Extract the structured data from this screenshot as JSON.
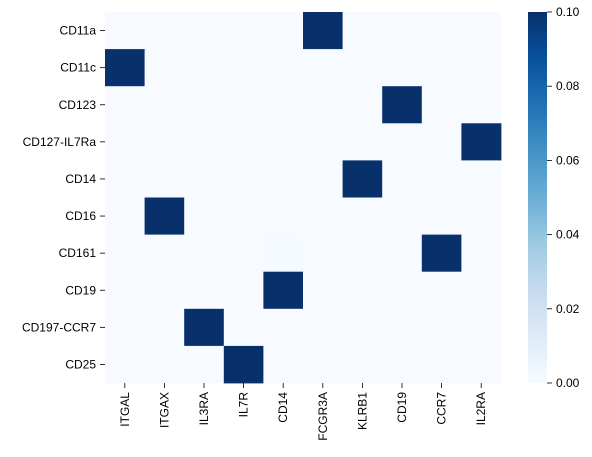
{
  "chart_data": {
    "type": "heatmap",
    "title": "",
    "xlabel": "",
    "ylabel": "",
    "x_categories": [
      "ITGAL",
      "ITGAX",
      "IL3RA",
      "IL7R",
      "CD14",
      "FCGR3A",
      "KLRB1",
      "CD19",
      "CCR7",
      "IL2RA"
    ],
    "y_categories": [
      "CD11a",
      "CD11c",
      "CD123",
      "CD127-IL7Ra",
      "CD14",
      "CD16",
      "CD161",
      "CD19",
      "CD197-CCR7",
      "CD25"
    ],
    "values": [
      [
        0,
        0,
        0,
        0,
        0,
        0.1,
        0,
        0,
        0,
        0
      ],
      [
        0.1,
        0,
        0,
        0,
        0,
        0,
        0,
        0,
        0,
        0
      ],
      [
        0,
        0,
        0,
        0,
        0,
        0,
        0,
        0.1,
        0,
        0
      ],
      [
        0,
        0,
        0,
        0,
        0,
        0,
        0,
        0,
        0,
        0.1
      ],
      [
        0,
        0,
        0,
        0,
        0,
        0,
        0.1,
        0,
        0,
        0
      ],
      [
        0,
        0.1,
        0,
        0,
        0,
        0,
        0,
        0,
        0,
        0
      ],
      [
        0,
        0,
        0,
        0,
        0.001,
        0,
        0,
        0,
        0.1,
        0
      ],
      [
        0,
        0,
        0,
        0,
        0.1,
        0,
        0,
        0,
        0,
        0
      ],
      [
        0,
        0,
        0.1,
        0,
        0,
        0,
        0,
        0,
        0,
        0
      ],
      [
        0,
        0,
        0,
        0.1,
        0,
        0,
        0,
        0,
        0,
        0
      ]
    ],
    "colorscale": "Blues",
    "vmin": 0,
    "vmax": 0.1,
    "colorbar_ticks": [
      0.0,
      0.02,
      0.04,
      0.06,
      0.08,
      0.1
    ],
    "colorbar_tick_labels": [
      "0.00",
      "0.02",
      "0.04",
      "0.06",
      "0.08",
      "0.10"
    ]
  }
}
